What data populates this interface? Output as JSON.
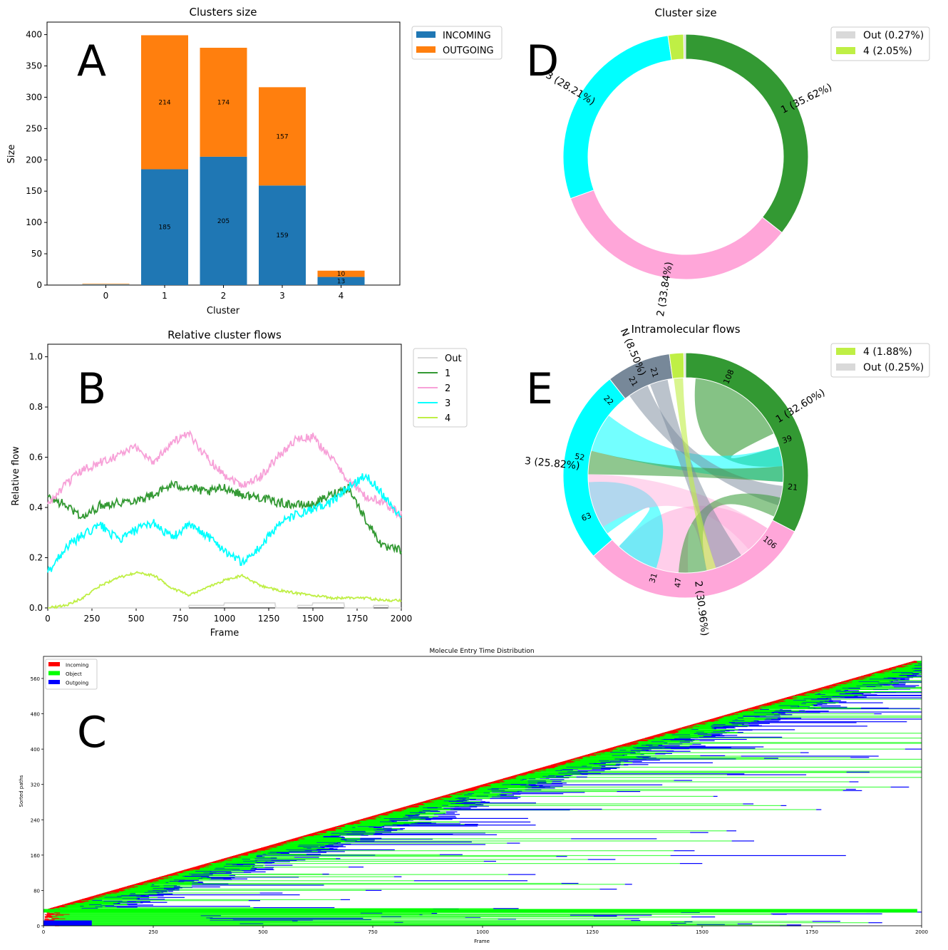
{
  "panel_letters": {
    "A": "A",
    "B": "B",
    "C": "C",
    "D": "D",
    "E": "E"
  },
  "chart_data": [
    {
      "id": "A",
      "type": "bar",
      "stacked": true,
      "title": "Clusters size",
      "xlabel": "Cluster",
      "ylabel": "Size",
      "categories": [
        "0",
        "1",
        "2",
        "3",
        "4"
      ],
      "ylim": [
        0,
        420
      ],
      "yticks": [
        0,
        50,
        100,
        150,
        200,
        250,
        300,
        350,
        400
      ],
      "series": [
        {
          "name": "INCOMING",
          "color": "#1f77b4",
          "values": [
            1,
            185,
            205,
            159,
            13
          ],
          "labels": [
            "",
            "185",
            "205",
            "159",
            "13"
          ]
        },
        {
          "name": "OUTGOING",
          "color": "#ff7f0e",
          "values": [
            1,
            214,
            174,
            157,
            10
          ],
          "labels": [
            "",
            "214",
            "174",
            "157",
            "10"
          ]
        }
      ],
      "legend": "upper-right-outside"
    },
    {
      "id": "B",
      "type": "line",
      "title": "Relative cluster flows",
      "xlabel": "Frame",
      "ylabel": "Relative flow",
      "xlim": [
        0,
        2000
      ],
      "ylim": [
        0,
        1.05
      ],
      "xticks": [
        0,
        250,
        500,
        750,
        1000,
        1250,
        1500,
        1750,
        2000
      ],
      "yticks": [
        "0.0",
        "0.2",
        "0.4",
        "0.6",
        "0.8",
        "1.0"
      ],
      "x": [
        0,
        100,
        200,
        300,
        400,
        500,
        600,
        700,
        800,
        900,
        1000,
        1100,
        1200,
        1300,
        1400,
        1500,
        1600,
        1700,
        1800,
        1900,
        2000
      ],
      "series": [
        {
          "name": "Out",
          "color": "#d9d9d9",
          "values": [
            0,
            0,
            0,
            0,
            0,
            0,
            0,
            0,
            0.01,
            0.01,
            0.02,
            0.02,
            0.02,
            0.01,
            0.01,
            0.02,
            0.02,
            0.01,
            0.01,
            0.01,
            0.01
          ]
        },
        {
          "name": "1",
          "color": "#339933",
          "values": [
            0.44,
            0.41,
            0.36,
            0.41,
            0.42,
            0.43,
            0.45,
            0.49,
            0.48,
            0.46,
            0.48,
            0.45,
            0.44,
            0.42,
            0.41,
            0.41,
            0.45,
            0.48,
            0.35,
            0.24,
            0.23
          ]
        },
        {
          "name": "2",
          "color": "#f7a1d8",
          "values": [
            0.41,
            0.49,
            0.55,
            0.58,
            0.61,
            0.64,
            0.58,
            0.66,
            0.69,
            0.6,
            0.53,
            0.49,
            0.52,
            0.6,
            0.67,
            0.68,
            0.6,
            0.51,
            0.44,
            0.42,
            0.37
          ]
        },
        {
          "name": "3",
          "color": "#00ffff",
          "values": [
            0.14,
            0.24,
            0.29,
            0.33,
            0.27,
            0.31,
            0.34,
            0.28,
            0.33,
            0.29,
            0.23,
            0.18,
            0.24,
            0.33,
            0.37,
            0.39,
            0.42,
            0.48,
            0.53,
            0.45,
            0.36
          ]
        },
        {
          "name": "4",
          "color": "#bfef45",
          "values": [
            0,
            0.01,
            0.04,
            0.09,
            0.12,
            0.14,
            0.13,
            0.08,
            0.05,
            0.08,
            0.11,
            0.13,
            0.09,
            0.07,
            0.06,
            0.05,
            0.04,
            0.04,
            0.04,
            0.03,
            0.03
          ]
        }
      ],
      "legend": "upper-right-outside"
    },
    {
      "id": "C",
      "type": "bar",
      "orientation": "horizontal",
      "title": "Molecule Entry Time Distribution",
      "xlabel": "Frame",
      "ylabel": "Sorted paths",
      "xlim": [
        0,
        2000
      ],
      "ylim": [
        0,
        610
      ],
      "xticks": [
        0,
        250,
        500,
        750,
        1000,
        1250,
        1500,
        1750,
        2000
      ],
      "yticks": [
        0,
        80,
        160,
        240,
        320,
        400,
        480,
        560
      ],
      "series": [
        {
          "name": "Incoming",
          "color": "#ff0000"
        },
        {
          "name": "Object",
          "color": "#00ff00"
        },
        {
          "name": "Outgoing",
          "color": "#0000ff"
        }
      ],
      "entry_frame_range": [
        0,
        2000
      ],
      "legend": "upper-left"
    },
    {
      "id": "D",
      "type": "pie",
      "donut": true,
      "title": "Cluster size",
      "slices": [
        {
          "label": "1",
          "text": "1 (35.62%)",
          "value": 35.62,
          "color": "#339933"
        },
        {
          "label": "2",
          "text": "2 (33.84%)",
          "value": 33.84,
          "color": "#ffa6d9"
        },
        {
          "label": "3",
          "text": "3 (28.21%)",
          "value": 28.21,
          "color": "#00ffff"
        },
        {
          "label": "4",
          "text": "4 (2.05%)",
          "value": 2.05,
          "color": "#bfef45"
        },
        {
          "label": "Out",
          "text": "Out (0.27%)",
          "value": 0.27,
          "color": "#d9d9d9"
        }
      ],
      "legend": [
        "Out (0.27%)",
        "4 (2.05%)"
      ]
    },
    {
      "id": "E",
      "type": "chord",
      "title": "Intramolecular flows",
      "segments": [
        {
          "label": "1",
          "text": "1 (32.60%)",
          "value": 32.6,
          "color": "#339933"
        },
        {
          "label": "2",
          "text": "2 (30.96%)",
          "value": 30.96,
          "color": "#ffa6d9"
        },
        {
          "label": "3",
          "text": "3 (25.82%)",
          "value": 25.82,
          "color": "#00ffff"
        },
        {
          "label": "N",
          "text": "N (8.50%)",
          "value": 8.5,
          "color": "#778899"
        },
        {
          "label": "4",
          "text": "4 (1.88%)",
          "value": 1.88,
          "color": "#bfef45"
        },
        {
          "label": "Out",
          "text": "Out (0.25%)",
          "value": 0.25,
          "color": "#d9d9d9"
        }
      ],
      "flow_labels": [
        "108",
        "39",
        "21",
        "106",
        "47",
        "31",
        "63",
        "52",
        "22",
        "21",
        "21"
      ],
      "legend": [
        "4 (1.88%)",
        "Out (0.25%)"
      ]
    }
  ]
}
